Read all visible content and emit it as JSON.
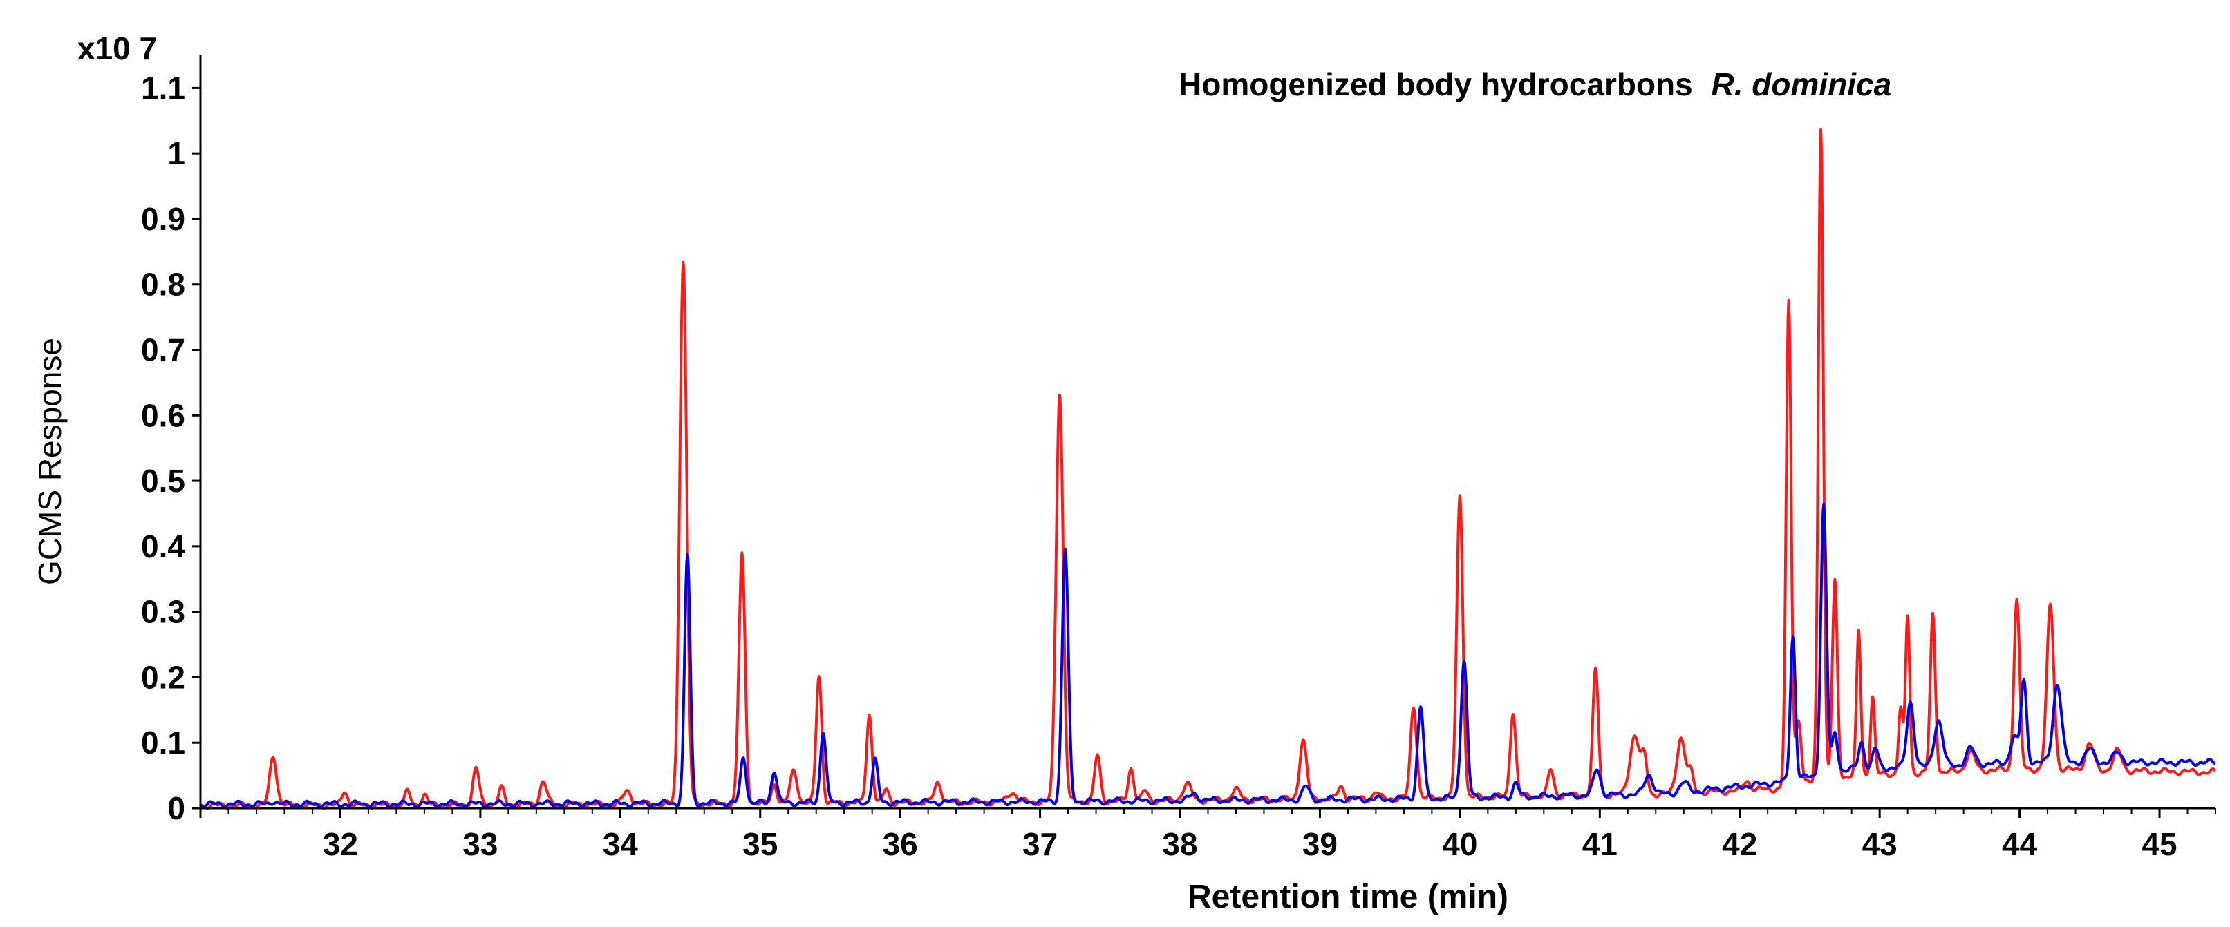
{
  "chart_data": {
    "type": "line",
    "title": "Homogenized body hydrocarbons",
    "title_species": "R. dominica",
    "xlabel": "Retention time (min)",
    "ylabel": "GCMS Response",
    "y_multiplier": "x10 7",
    "xlim": [
      31.0,
      45.4
    ],
    "ylim": [
      0,
      1.15
    ],
    "x_ticks": [
      32,
      33,
      34,
      35,
      36,
      37,
      38,
      39,
      40,
      41,
      42,
      43,
      44,
      45
    ],
    "y_ticks": [
      0,
      0.1,
      0.2,
      0.3,
      0.4,
      0.5,
      0.6,
      0.7,
      0.8,
      0.9,
      1,
      1.1
    ],
    "series": [
      {
        "name": "red",
        "color": "#ff1a1a",
        "baseline": [
          [
            31.0,
            0.004
          ],
          [
            34.0,
            0.006
          ],
          [
            37.0,
            0.01
          ],
          [
            39.5,
            0.015
          ],
          [
            41.5,
            0.022
          ],
          [
            42.3,
            0.03
          ],
          [
            42.8,
            0.05
          ],
          [
            44.0,
            0.06
          ],
          [
            45.4,
            0.055
          ]
        ],
        "peaks": [
          [
            31.52,
            0.075,
            0.025
          ],
          [
            32.03,
            0.022,
            0.02
          ],
          [
            32.48,
            0.02,
            0.02
          ],
          [
            32.6,
            0.015,
            0.02
          ],
          [
            32.97,
            0.055,
            0.022
          ],
          [
            33.15,
            0.025,
            0.02
          ],
          [
            33.45,
            0.035,
            0.025
          ],
          [
            34.05,
            0.02,
            0.03
          ],
          [
            34.45,
            0.83,
            0.025
          ],
          [
            34.87,
            0.38,
            0.022
          ],
          [
            35.1,
            0.03,
            0.02
          ],
          [
            35.24,
            0.05,
            0.025
          ],
          [
            35.42,
            0.195,
            0.02
          ],
          [
            35.78,
            0.135,
            0.02
          ],
          [
            35.9,
            0.02,
            0.02
          ],
          [
            36.27,
            0.03,
            0.025
          ],
          [
            36.8,
            0.015,
            0.03
          ],
          [
            37.14,
            0.625,
            0.025
          ],
          [
            37.41,
            0.07,
            0.02
          ],
          [
            37.65,
            0.05,
            0.02
          ],
          [
            37.75,
            0.015,
            0.02
          ],
          [
            38.05,
            0.025,
            0.03
          ],
          [
            38.4,
            0.015,
            0.03
          ],
          [
            38.88,
            0.09,
            0.025
          ],
          [
            39.15,
            0.02,
            0.02
          ],
          [
            39.4,
            0.01,
            0.02
          ],
          [
            39.67,
            0.14,
            0.022
          ],
          [
            40.0,
            0.46,
            0.022
          ],
          [
            40.38,
            0.13,
            0.02
          ],
          [
            40.65,
            0.04,
            0.02
          ],
          [
            40.97,
            0.19,
            0.02
          ],
          [
            41.25,
            0.09,
            0.035
          ],
          [
            41.32,
            0.05,
            0.02
          ],
          [
            41.58,
            0.085,
            0.03
          ],
          [
            41.65,
            0.03,
            0.02
          ],
          [
            42.05,
            0.015,
            0.025
          ],
          [
            42.35,
            0.74,
            0.018
          ],
          [
            42.42,
            0.1,
            0.02
          ],
          [
            42.58,
            1.0,
            0.018
          ],
          [
            42.68,
            0.3,
            0.018
          ],
          [
            42.85,
            0.22,
            0.015
          ],
          [
            42.95,
            0.12,
            0.015
          ],
          [
            43.15,
            0.1,
            0.015
          ],
          [
            43.2,
            0.24,
            0.015
          ],
          [
            43.38,
            0.24,
            0.018
          ],
          [
            43.65,
            0.03,
            0.03
          ],
          [
            43.98,
            0.26,
            0.02
          ],
          [
            44.22,
            0.25,
            0.025
          ],
          [
            44.5,
            0.04,
            0.03
          ],
          [
            44.7,
            0.03,
            0.03
          ]
        ]
      },
      {
        "name": "blue",
        "color": "#0000e6",
        "baseline": [
          [
            31.0,
            0.006
          ],
          [
            34.0,
            0.007
          ],
          [
            37.0,
            0.01
          ],
          [
            39.5,
            0.014
          ],
          [
            41.5,
            0.022
          ],
          [
            42.3,
            0.04
          ],
          [
            42.8,
            0.06
          ],
          [
            43.5,
            0.065
          ],
          [
            44.0,
            0.07
          ],
          [
            45.4,
            0.07
          ]
        ],
        "peaks": [
          [
            31.52,
            0.005,
            0.02
          ],
          [
            34.48,
            0.38,
            0.02
          ],
          [
            34.88,
            0.07,
            0.02
          ],
          [
            35.1,
            0.05,
            0.02
          ],
          [
            35.45,
            0.11,
            0.02
          ],
          [
            35.82,
            0.065,
            0.02
          ],
          [
            37.18,
            0.385,
            0.022
          ],
          [
            38.1,
            0.01,
            0.03
          ],
          [
            38.9,
            0.02,
            0.025
          ],
          [
            39.72,
            0.14,
            0.022
          ],
          [
            40.03,
            0.21,
            0.022
          ],
          [
            40.4,
            0.02,
            0.02
          ],
          [
            40.98,
            0.04,
            0.025
          ],
          [
            41.35,
            0.03,
            0.03
          ],
          [
            41.6,
            0.015,
            0.03
          ],
          [
            42.38,
            0.22,
            0.018
          ],
          [
            42.6,
            0.41,
            0.02
          ],
          [
            42.68,
            0.06,
            0.02
          ],
          [
            42.87,
            0.04,
            0.02
          ],
          [
            42.97,
            0.03,
            0.02
          ],
          [
            43.22,
            0.1,
            0.025
          ],
          [
            43.42,
            0.07,
            0.03
          ],
          [
            43.65,
            0.025,
            0.03
          ],
          [
            43.96,
            0.04,
            0.025
          ],
          [
            44.03,
            0.125,
            0.02
          ],
          [
            44.27,
            0.12,
            0.03
          ],
          [
            44.5,
            0.02,
            0.03
          ],
          [
            44.7,
            0.015,
            0.03
          ]
        ]
      }
    ]
  }
}
